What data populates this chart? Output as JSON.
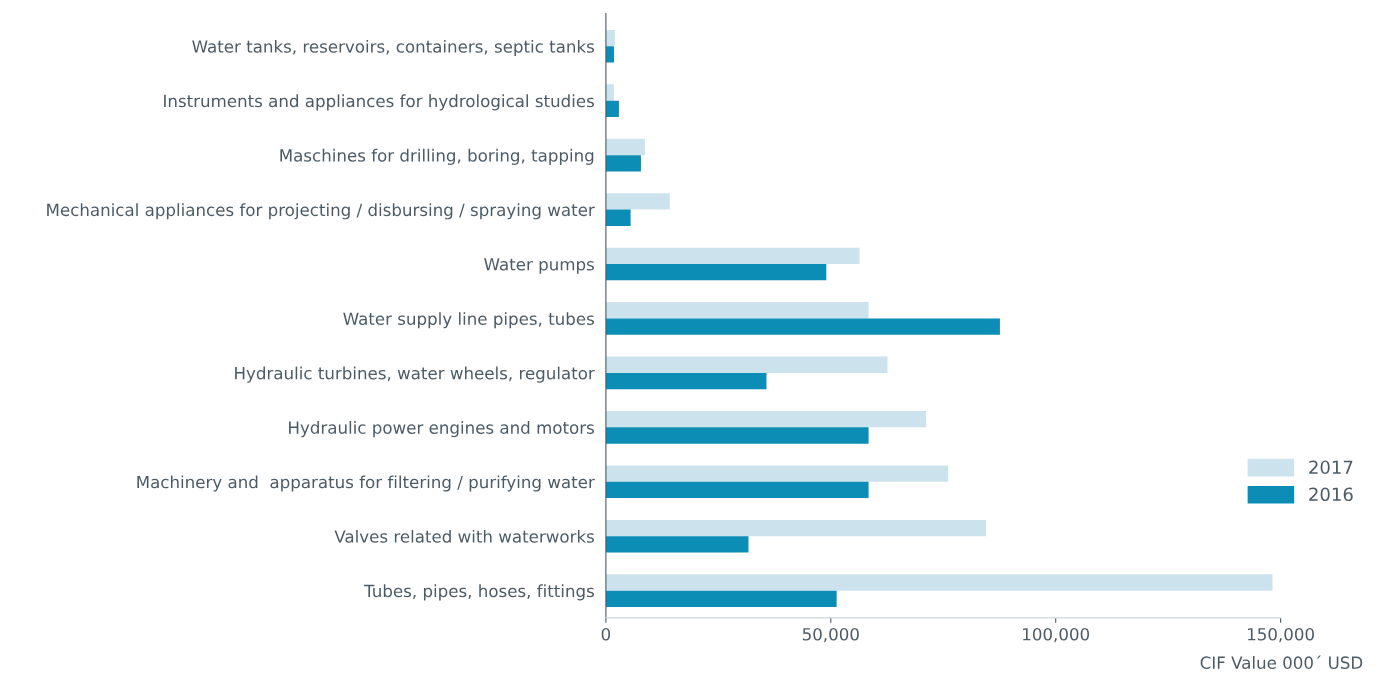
{
  "chart_data": {
    "type": "bar",
    "orientation": "horizontal",
    "xlabel": "CIF Value 000´ USD",
    "categories": [
      "Water tanks, reservoirs, containers, septic tanks",
      "Instruments and appliances for hydrological studies",
      "Maschines for drilling, boring, tapping",
      "Mechanical appliances for projecting / disbursing / spraying water",
      "Water pumps",
      "Water supply line pipes, tubes",
      "Hydraulic turbines, water wheels, regulator",
      "Hydraulic power engines and motors",
      "Machinery and  apparatus for filtering / purifying water",
      "Valves related with waterworks",
      "Tubes, pipes, hoses, fittings"
    ],
    "series": [
      {
        "name": "2017",
        "color": "#cce3ee",
        "values": [
          2000,
          1800,
          8700,
          14200,
          56400,
          58400,
          62600,
          71200,
          76100,
          84500,
          148200
        ]
      },
      {
        "name": "2016",
        "color": "#0b8db5",
        "values": [
          1800,
          2900,
          7800,
          5500,
          49000,
          87600,
          35700,
          58400,
          58400,
          31700,
          51300
        ]
      }
    ],
    "xlim": [
      0,
      150000
    ],
    "xticks": [
      0,
      {
        "value": 50000,
        "label": "50,000"
      },
      {
        "value": 100000,
        "label": "100,000"
      },
      {
        "value": 150000,
        "label": "150,000"
      }
    ],
    "grid": false,
    "legend": "right"
  }
}
